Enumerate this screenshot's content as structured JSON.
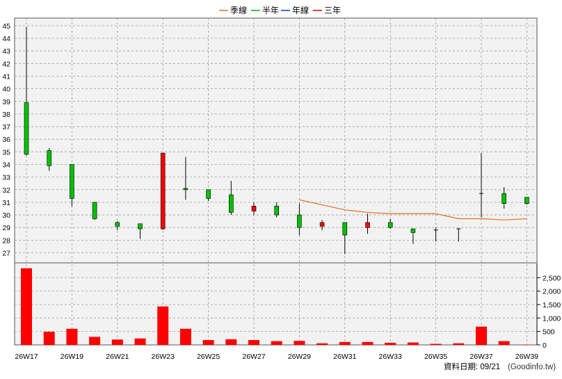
{
  "legend": [
    {
      "label": "季線",
      "color": "#e07020"
    },
    {
      "label": "半年",
      "color": "#00b000"
    },
    {
      "label": "年線",
      "color": "#0040c0"
    },
    {
      "label": "三年",
      "color": "#e00000"
    }
  ],
  "footer": {
    "date_label": "資料日期: 09/21",
    "source": "(Goodinfo.tw)"
  },
  "colors": {
    "up": "#ff0000",
    "down": "#00c000",
    "volume": "#ff0000",
    "ma_quarter": "#e07020",
    "grid": "#999999",
    "plot_bg": "#f2f2f2"
  },
  "chart_data": [
    {
      "type": "candlestick",
      "title": "",
      "price_ticks": [
        27,
        28,
        29,
        30,
        31,
        32,
        33,
        34,
        35,
        36,
        37,
        38,
        39,
        40,
        41,
        42,
        43,
        44,
        45
      ],
      "ylim": [
        26.2,
        45.6
      ],
      "grid": true,
      "legend_position": "top-center",
      "x_tick_labels": [
        "26W17",
        "26W19",
        "26W21",
        "26W23",
        "26W25",
        "26W27",
        "26W29",
        "26W31",
        "26W33",
        "26W35",
        "26W37",
        "26W39"
      ],
      "weeks": [
        "26W17",
        "26W18",
        "26W19",
        "26W20",
        "26W21",
        "26W22",
        "26W23",
        "26W24",
        "26W25",
        "26W26",
        "26W27",
        "26W28",
        "26W29",
        "26W30",
        "26W31",
        "26W32",
        "26W33",
        "26W34",
        "26W35",
        "26W36",
        "26W37",
        "26W38",
        "26W39"
      ],
      "candles": [
        {
          "open": 38.9,
          "high": 44.9,
          "low": 34.7,
          "close": 34.8
        },
        {
          "open": 35.1,
          "high": 35.3,
          "low": 33.5,
          "close": 33.9
        },
        {
          "open": 34.0,
          "high": 34.0,
          "low": 30.7,
          "close": 31.3
        },
        {
          "open": 31.0,
          "high": 31.0,
          "low": 29.6,
          "close": 29.7
        },
        {
          "open": 29.4,
          "high": 29.5,
          "low": 28.8,
          "close": 29.1
        },
        {
          "open": 29.3,
          "high": 29.3,
          "low": 28.1,
          "close": 28.9
        },
        {
          "open": 28.9,
          "high": 34.9,
          "low": 28.8,
          "close": 34.9
        },
        {
          "open": 32.1,
          "high": 34.6,
          "low": 31.2,
          "close": 32.0
        },
        {
          "open": 32.0,
          "high": 32.0,
          "low": 31.1,
          "close": 31.3
        },
        {
          "open": 31.6,
          "high": 32.7,
          "low": 30.0,
          "close": 30.2
        },
        {
          "open": 30.3,
          "high": 31.0,
          "low": 30.0,
          "close": 30.7
        },
        {
          "open": 30.7,
          "high": 31.0,
          "low": 29.8,
          "close": 30.0
        },
        {
          "open": 30.0,
          "high": 30.9,
          "low": 28.4,
          "close": 29.0
        },
        {
          "open": 29.1,
          "high": 29.6,
          "low": 28.8,
          "close": 29.4
        },
        {
          "open": 29.4,
          "high": 29.4,
          "low": 26.9,
          "close": 28.4
        },
        {
          "open": 29.0,
          "high": 30.1,
          "low": 28.5,
          "close": 29.4
        },
        {
          "open": 29.4,
          "high": 29.7,
          "low": 28.9,
          "close": 29.0
        },
        {
          "open": 28.9,
          "high": 28.9,
          "low": 27.7,
          "close": 28.6
        },
        {
          "open": 28.8,
          "high": 29.0,
          "low": 27.9,
          "close": 28.8
        },
        {
          "open": 28.9,
          "high": 28.9,
          "low": 27.9,
          "close": 28.9
        },
        {
          "open": 31.7,
          "high": 34.9,
          "low": 29.8,
          "close": 31.7
        },
        {
          "open": 31.7,
          "high": 32.2,
          "low": 30.5,
          "close": 30.9
        },
        {
          "open": 31.4,
          "high": 31.4,
          "low": 30.8,
          "close": 30.9
        }
      ],
      "ma_quarter": [
        null,
        null,
        null,
        null,
        null,
        null,
        null,
        null,
        null,
        null,
        null,
        null,
        31.2,
        30.8,
        30.4,
        30.2,
        30.1,
        30.1,
        30.1,
        29.7,
        29.7,
        29.6,
        29.7
      ]
    },
    {
      "type": "bar",
      "title": "",
      "ylabel": "",
      "y_ticks": [
        0,
        500,
        1000,
        1500,
        2000,
        2500
      ],
      "y_tick_labels": [
        "0",
        "500",
        "1,000",
        "1,500",
        "2,000",
        "2,500"
      ],
      "ylim": [
        0,
        3050
      ],
      "categories": [
        "26W17",
        "26W18",
        "26W19",
        "26W20",
        "26W21",
        "26W22",
        "26W23",
        "26W24",
        "26W25",
        "26W26",
        "26W27",
        "26W28",
        "26W29",
        "26W30",
        "26W31",
        "26W32",
        "26W33",
        "26W34",
        "26W35",
        "26W36",
        "26W37",
        "26W38",
        "26W39"
      ],
      "values": [
        2850,
        490,
        600,
        300,
        200,
        240,
        1430,
        600,
        180,
        210,
        180,
        140,
        150,
        60,
        110,
        110,
        80,
        90,
        40,
        60,
        680,
        140,
        10
      ]
    }
  ]
}
